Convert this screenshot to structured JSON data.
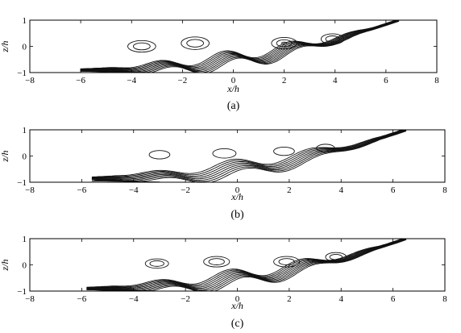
{
  "chart_data": [
    {
      "type": "contour",
      "panel": "(a)",
      "xlabel": "x/h",
      "ylabel": "z/h",
      "xlim": [
        -8,
        8
      ],
      "ylim": [
        -1,
        1
      ],
      "x_ticks": [
        -8,
        -6,
        -4,
        -2,
        0,
        2,
        4,
        6,
        8
      ],
      "y_ticks": [
        -1,
        0,
        1
      ],
      "x_tick_labels": [
        "−8",
        "−6",
        "−4",
        "−2",
        "0",
        "2",
        "4",
        "6",
        "8"
      ],
      "y_tick_labels": [
        "−1",
        "0",
        "1"
      ],
      "mixing_layer": {
        "start": [
          -6.0,
          -0.9
        ],
        "end": [
          6.5,
          1.0
        ],
        "amplitude": 0.22,
        "wavelength": 2.6,
        "phase": 1.2,
        "line_count": 9,
        "spread": 0.35
      },
      "vortices": [
        {
          "x": -3.6,
          "z": 0.0,
          "rx": 0.55,
          "rz": 0.22,
          "rings": 2
        },
        {
          "x": -1.5,
          "z": 0.12,
          "rx": 0.55,
          "rz": 0.24,
          "rings": 2
        },
        {
          "x": 2.0,
          "z": 0.12,
          "rx": 0.5,
          "rz": 0.22,
          "rings": 3
        },
        {
          "x": 3.9,
          "z": 0.28,
          "rx": 0.45,
          "rz": 0.2,
          "rings": 2
        }
      ]
    },
    {
      "type": "contour",
      "panel": "(b)",
      "xlabel": "x/h",
      "ylabel": "z/h",
      "xlim": [
        -8,
        8
      ],
      "ylim": [
        -1,
        1
      ],
      "x_ticks": [
        -8,
        -6,
        -4,
        -2,
        0,
        2,
        4,
        6,
        8
      ],
      "y_ticks": [
        -1,
        0,
        1
      ],
      "x_tick_labels": [
        "−8",
        "−6",
        "−4",
        "−2",
        "0",
        "2",
        "4",
        "6",
        "8"
      ],
      "y_tick_labels": [
        "−1",
        "0",
        "1"
      ],
      "mixing_layer": {
        "start": [
          -5.6,
          -0.85
        ],
        "end": [
          6.5,
          1.0
        ],
        "amplitude": 0.2,
        "wavelength": 3.1,
        "phase": 0.9,
        "line_count": 8,
        "spread": 0.42
      },
      "vortices": [
        {
          "x": -3.0,
          "z": 0.05,
          "rx": 0.4,
          "rz": 0.16,
          "rings": 1
        },
        {
          "x": -0.5,
          "z": 0.1,
          "rx": 0.45,
          "rz": 0.18,
          "rings": 1
        },
        {
          "x": 1.8,
          "z": 0.18,
          "rx": 0.4,
          "rz": 0.16,
          "rings": 1
        },
        {
          "x": 3.4,
          "z": 0.3,
          "rx": 0.35,
          "rz": 0.15,
          "rings": 1
        }
      ]
    },
    {
      "type": "contour",
      "panel": "(c)",
      "xlabel": "x/h",
      "ylabel": "z/h",
      "xlim": [
        -8,
        8
      ],
      "ylim": [
        -1,
        1
      ],
      "x_ticks": [
        -8,
        -6,
        -4,
        -2,
        0,
        2,
        4,
        6,
        8
      ],
      "y_ticks": [
        -1,
        0,
        1
      ],
      "x_tick_labels": [
        "−8",
        "−6",
        "−4",
        "−2",
        "0",
        "2",
        "4",
        "6",
        "8"
      ],
      "y_tick_labels": [
        "−1",
        "0",
        "1"
      ],
      "mixing_layer": {
        "start": [
          -5.8,
          -0.9
        ],
        "end": [
          6.5,
          1.0
        ],
        "amplitude": 0.22,
        "wavelength": 2.8,
        "phase": 1.0,
        "line_count": 9,
        "spread": 0.38
      },
      "vortices": [
        {
          "x": -3.1,
          "z": 0.05,
          "rx": 0.45,
          "rz": 0.18,
          "rings": 2
        },
        {
          "x": -0.8,
          "z": 0.12,
          "rx": 0.5,
          "rz": 0.2,
          "rings": 2
        },
        {
          "x": 1.9,
          "z": 0.12,
          "rx": 0.5,
          "rz": 0.2,
          "rings": 2
        },
        {
          "x": 3.8,
          "z": 0.3,
          "rx": 0.4,
          "rz": 0.17,
          "rings": 2
        }
      ]
    }
  ]
}
